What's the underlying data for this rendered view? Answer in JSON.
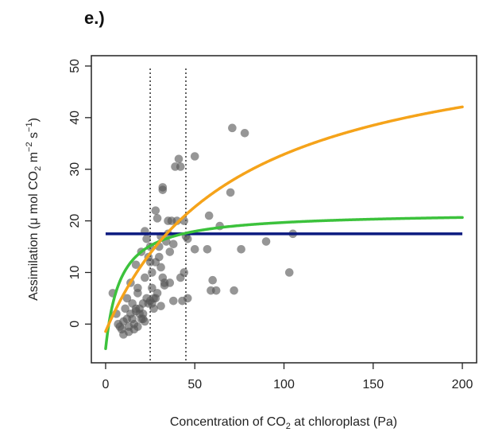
{
  "panel_label": "e.)",
  "chart_data": {
    "type": "scatter",
    "xlabel": "Concentration of CO₂ at chloroplast (Pa)",
    "xlabel_parts": {
      "pre": "Concentration of CO",
      "sub": "2",
      "post": " at chloroplast (Pa)"
    },
    "ylabel": "Assimilation (μ mol CO₂ m⁻² s⁻¹)",
    "ylabel_parts": {
      "pre": "Assimilation (μ mol CO",
      "sub": "2",
      "mid1": " m",
      "sup1": "−2",
      "mid2": " s",
      "sup2": "−1",
      "post": ")"
    },
    "xlim": [
      -8,
      208
    ],
    "ylim": [
      -7.5,
      52
    ],
    "xticks": [
      0,
      50,
      100,
      150,
      200
    ],
    "yticks": [
      0,
      10,
      20,
      30,
      40,
      50
    ],
    "grid": false,
    "vlines": [
      25,
      45
    ],
    "colors": {
      "points": "#555555",
      "orange": "#f5a31a",
      "green": "#3cc23c",
      "navy": "#0c1a80"
    },
    "curves": [
      {
        "color_key": "navy",
        "kind": "constant",
        "value": 17.5
      },
      {
        "color_key": "green",
        "kind": "rect_hyperbola",
        "amax": 21.7,
        "k": 10,
        "x0": 1.8
      },
      {
        "color_key": "orange",
        "kind": "rect_hyperbola",
        "amax": 58,
        "k": 75,
        "x0": 1.8
      }
    ],
    "points": [
      [
        4,
        6
      ],
      [
        6,
        2
      ],
      [
        7,
        0
      ],
      [
        8,
        -0.5
      ],
      [
        9,
        -1
      ],
      [
        10,
        0.5
      ],
      [
        10,
        -2
      ],
      [
        11,
        3
      ],
      [
        12,
        1
      ],
      [
        12,
        5
      ],
      [
        13,
        -0.5
      ],
      [
        13,
        -1.5
      ],
      [
        14,
        2
      ],
      [
        14,
        8
      ],
      [
        15,
        1
      ],
      [
        15,
        4
      ],
      [
        16,
        0
      ],
      [
        16,
        -1
      ],
      [
        17,
        3
      ],
      [
        17,
        2.5
      ],
      [
        17,
        11.5
      ],
      [
        18,
        6
      ],
      [
        18,
        7
      ],
      [
        18,
        -0.5
      ],
      [
        19,
        3
      ],
      [
        19,
        2
      ],
      [
        20,
        1
      ],
      [
        20,
        14
      ],
      [
        21,
        1
      ],
      [
        21,
        2
      ],
      [
        21,
        4
      ],
      [
        22,
        0.5
      ],
      [
        22,
        9
      ],
      [
        22,
        18
      ],
      [
        23,
        16.5
      ],
      [
        23,
        5
      ],
      [
        24,
        4
      ],
      [
        24,
        13
      ],
      [
        25,
        4.5
      ],
      [
        25,
        12
      ],
      [
        25,
        15
      ],
      [
        26,
        7
      ],
      [
        26,
        10
      ],
      [
        26,
        4
      ],
      [
        27,
        5
      ],
      [
        27,
        3
      ],
      [
        28,
        22
      ],
      [
        28,
        5
      ],
      [
        28,
        12
      ],
      [
        29,
        20.5
      ],
      [
        29,
        6
      ],
      [
        30,
        13
      ],
      [
        30,
        15
      ],
      [
        31,
        11
      ],
      [
        31,
        17
      ],
      [
        31,
        3.5
      ],
      [
        32,
        26.5
      ],
      [
        32,
        26
      ],
      [
        32,
        9
      ],
      [
        33,
        8
      ],
      [
        33,
        7.5
      ],
      [
        34,
        16
      ],
      [
        35,
        20
      ],
      [
        35,
        17.5
      ],
      [
        36,
        14
      ],
      [
        36,
        8
      ],
      [
        37,
        20
      ],
      [
        38,
        15.5
      ],
      [
        38,
        4.5
      ],
      [
        39,
        30.5
      ],
      [
        40,
        20
      ],
      [
        41,
        32
      ],
      [
        42,
        30.5
      ],
      [
        42,
        9
      ],
      [
        43,
        4.5
      ],
      [
        44,
        20
      ],
      [
        44,
        10
      ],
      [
        45,
        17
      ],
      [
        46,
        16.5
      ],
      [
        46,
        5
      ],
      [
        50,
        14.5
      ],
      [
        50,
        32.5
      ],
      [
        57,
        14.5
      ],
      [
        58,
        21
      ],
      [
        59,
        6.5
      ],
      [
        60,
        8.5
      ],
      [
        62,
        6.5
      ],
      [
        64,
        19
      ],
      [
        70,
        25.5
      ],
      [
        71,
        38
      ],
      [
        72,
        6.5
      ],
      [
        76,
        14.5
      ],
      [
        78,
        37
      ],
      [
        90,
        16
      ],
      [
        103,
        10
      ],
      [
        105,
        17.5
      ]
    ]
  }
}
